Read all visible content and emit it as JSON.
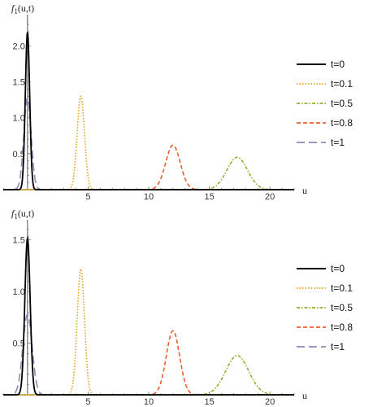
{
  "chart_data": [
    {
      "type": "line",
      "ylabel": "f_1(u,t)",
      "xlabel": "u",
      "xlim": [
        -2,
        22
      ],
      "ylim": [
        0,
        2.3
      ],
      "xticks": [
        5,
        10,
        15,
        20
      ],
      "yticks": [
        0.5,
        1.0,
        1.5,
        2.0
      ],
      "ytick_labels": [
        "0.5",
        "1.0",
        "1.5",
        "2.0"
      ],
      "legend_position": "right",
      "series": [
        {
          "name": "t=0",
          "color": "#000000",
          "dash": "solid",
          "center": 0.0,
          "peak": 2.2,
          "width": 0.18
        },
        {
          "name": "t=0.1",
          "color": "#e3a21a",
          "dash": "dotted",
          "center": 4.4,
          "peak": 1.3,
          "width": 0.3
        },
        {
          "name": "t=0.5",
          "color": "#8db22b",
          "dash": "dashdot",
          "center": 17.3,
          "peak": 0.45,
          "width": 0.85
        },
        {
          "name": "t=0.8",
          "color": "#e8602b",
          "dash": "dashed",
          "center": 12.0,
          "peak": 0.62,
          "width": 0.6
        },
        {
          "name": "t=1",
          "color": "#8a8ab8",
          "dash": "longdashed",
          "center": 0.0,
          "peak": 1.28,
          "width": 0.3
        }
      ]
    },
    {
      "type": "line",
      "ylabel": "f_1(u,t)",
      "xlabel": "u",
      "xlim": [
        -2,
        22
      ],
      "ylim": [
        0,
        1.6
      ],
      "xticks": [
        5,
        10,
        15,
        20
      ],
      "yticks": [
        0.5,
        1.0,
        1.5
      ],
      "ytick_labels": [
        "0.5",
        "1.0",
        "1.5"
      ],
      "legend_position": "right",
      "series": [
        {
          "name": "t=0",
          "color": "#000000",
          "dash": "solid",
          "center": 0.0,
          "peak": 1.52,
          "width": 0.22
        },
        {
          "name": "t=0.1",
          "color": "#e3a21a",
          "dash": "dotted",
          "center": 4.4,
          "peak": 1.22,
          "width": 0.3
        },
        {
          "name": "t=0.5",
          "color": "#8db22b",
          "dash": "dashdot",
          "center": 17.3,
          "peak": 0.38,
          "width": 0.95
        },
        {
          "name": "t=0.8",
          "color": "#e8602b",
          "dash": "dashed",
          "center": 12.0,
          "peak": 0.62,
          "width": 0.55
        },
        {
          "name": "t=1",
          "color": "#8a8ab8",
          "dash": "longdashed",
          "center": 0.0,
          "peak": 0.78,
          "width": 0.38
        }
      ]
    }
  ]
}
